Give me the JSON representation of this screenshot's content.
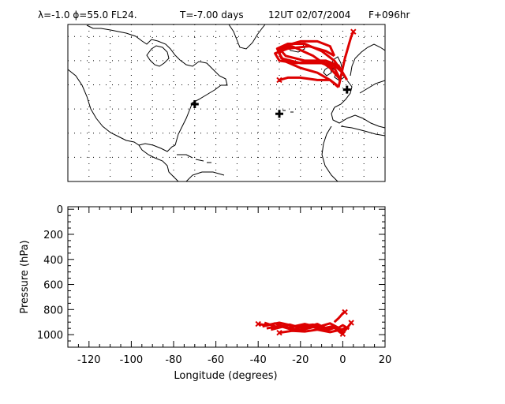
{
  "header": {
    "run_label": "λ=-1.0 ϕ=55.0 FL24.",
    "time_label": "T=-7.00 days",
    "date_label": "12UT 02/07/2004",
    "forecast_label": "F+096hr"
  },
  "colors": {
    "trajectory": "#dd0000",
    "coast": "#000000",
    "frame": "#000000"
  },
  "chart_data": [
    {
      "type": "line",
      "title": "",
      "xlabel": "",
      "ylabel": "",
      "x_range": [
        -130,
        20
      ],
      "y_range": [
        10,
        75
      ],
      "grid": true,
      "markers": [
        {
          "lon": -70,
          "lat": 42
        },
        {
          "lon": -30,
          "lat": 38
        },
        {
          "lon": 2,
          "lat": 48
        }
      ],
      "series": [
        {
          "x": [
            -30,
            -26,
            -20,
            -12,
            -6,
            -3,
            -2
          ],
          "y": [
            52,
            53,
            53,
            52,
            52,
            50,
            49
          ]
        },
        {
          "x": [
            -2,
            -6,
            -12,
            -20,
            -28,
            -30,
            -28,
            -20,
            -12,
            -6,
            -4
          ],
          "y": [
            49,
            52,
            55,
            57,
            60,
            63,
            66,
            68,
            68,
            66,
            62
          ]
        },
        {
          "x": [
            -4,
            -8,
            -16,
            -26,
            -32,
            -30,
            -22,
            -12,
            -4,
            0
          ],
          "y": [
            62,
            64,
            66,
            65,
            63,
            60,
            59,
            60,
            58,
            55
          ]
        },
        {
          "x": [
            0,
            -4,
            -10,
            -18,
            -26,
            -31,
            -29,
            -20,
            -10,
            -4,
            -1
          ],
          "y": [
            55,
            60,
            64,
            67,
            67,
            65,
            61,
            59,
            59,
            57,
            52
          ]
        },
        {
          "x": [
            -1,
            -6,
            -14,
            -24,
            -30,
            -27,
            -18,
            -8,
            -2,
            2
          ],
          "y": [
            52,
            57,
            62,
            66,
            65,
            62,
            60,
            60,
            58,
            52
          ]
        },
        {
          "x": [
            -2,
            -1,
            0,
            1,
            2,
            3,
            4,
            5
          ],
          "y": [
            49,
            53,
            57,
            61,
            64,
            67,
            70,
            72
          ]
        }
      ]
    },
    {
      "type": "line",
      "title": "",
      "xlabel": "Longitude (degrees)",
      "ylabel": "Pressure (hPa)",
      "x_ticks": [
        "-120",
        "-100",
        "-80",
        "-60",
        "-40",
        "-20",
        "0",
        "20"
      ],
      "y_ticks": [
        "0",
        "200",
        "400",
        "600",
        "800",
        "1000"
      ],
      "xlim": [
        -130,
        20
      ],
      "ylim": [
        1100,
        -20
      ],
      "series": [
        {
          "x": [
            -40,
            -36,
            -30,
            -22,
            -14,
            -8,
            -4,
            -1,
            1
          ],
          "y": [
            915,
            925,
            905,
            935,
            920,
            945,
            930,
            960,
            950
          ]
        },
        {
          "x": [
            -38,
            -32,
            -26,
            -18,
            -12,
            -6,
            -2,
            0,
            3
          ],
          "y": [
            935,
            910,
            945,
            915,
            940,
            910,
            945,
            925,
            955
          ]
        },
        {
          "x": [
            -36,
            -30,
            -24,
            -16,
            -10,
            -4,
            -1,
            2
          ],
          "y": [
            950,
            930,
            960,
            925,
            955,
            935,
            970,
            940
          ]
        },
        {
          "x": [
            -37,
            -31,
            -25,
            -19,
            -12,
            -7,
            -3,
            0
          ],
          "y": [
            905,
            940,
            920,
            950,
            915,
            960,
            940,
            980
          ]
        },
        {
          "x": [
            -34,
            -28,
            -20,
            -14,
            -8,
            -4,
            -1,
            0
          ],
          "y": [
            960,
            935,
            965,
            940,
            970,
            945,
            985,
            995
          ]
        },
        {
          "x": [
            -30,
            -24,
            -18,
            -12,
            -6,
            -2,
            0,
            4
          ],
          "y": [
            985,
            970,
            975,
            960,
            980,
            965,
            990,
            905
          ]
        },
        {
          "x": [
            -4,
            -2,
            -1,
            0,
            1
          ],
          "y": [
            900,
            870,
            850,
            830,
            820
          ]
        }
      ],
      "end_markers": [
        {
          "x": -40,
          "y": 915
        },
        {
          "x": -30,
          "y": 985
        },
        {
          "x": 4,
          "y": 905
        },
        {
          "x": 1,
          "y": 820
        },
        {
          "x": 0,
          "y": 995
        }
      ]
    }
  ]
}
